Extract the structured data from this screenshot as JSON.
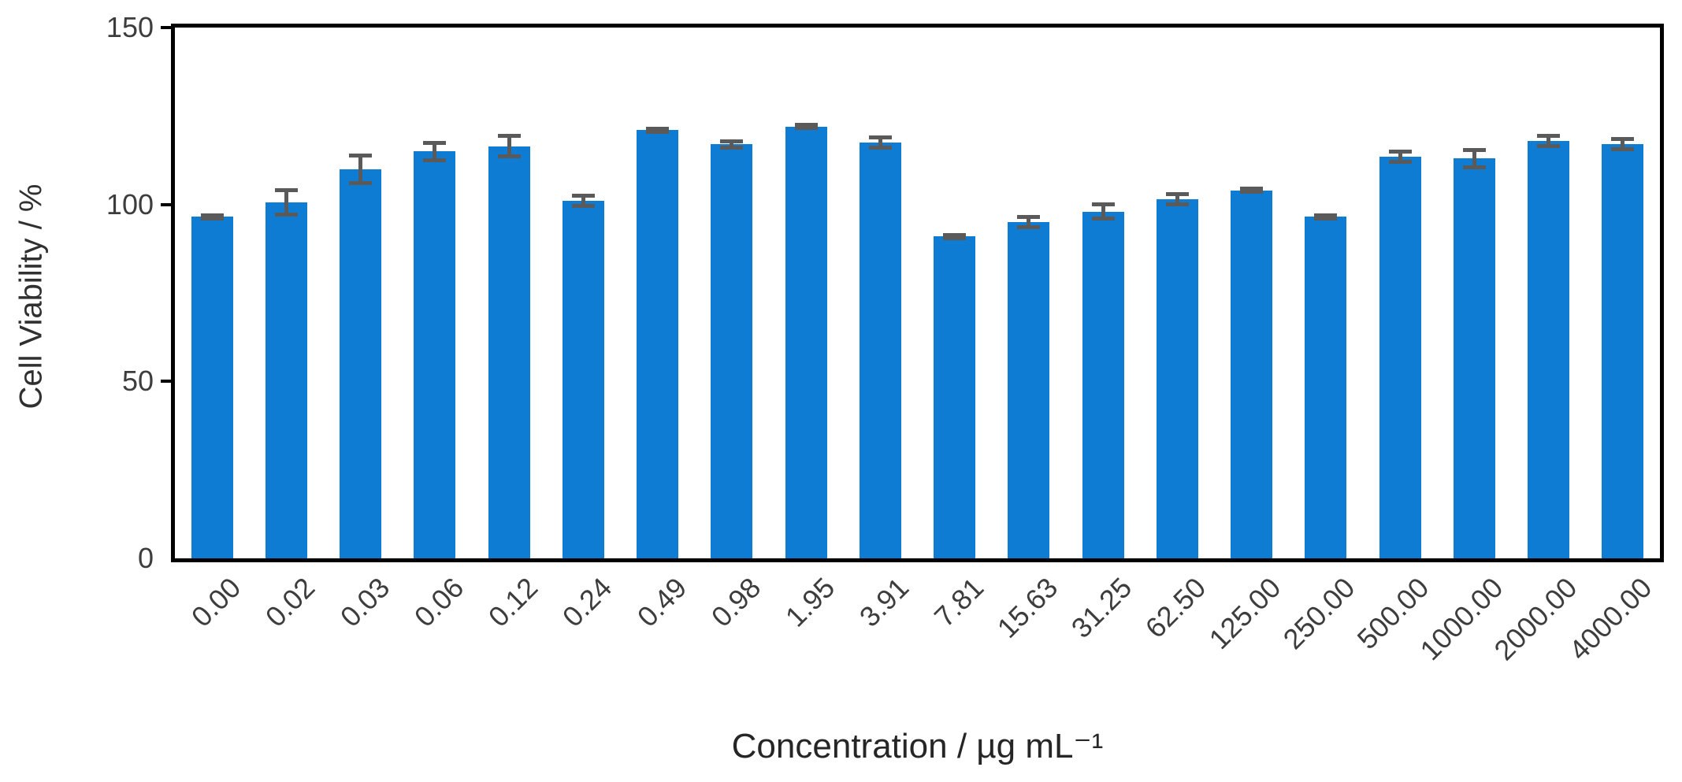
{
  "chart_data": {
    "type": "bar",
    "title": "",
    "categories": [
      "0.00",
      "0.02",
      "0.03",
      "0.06",
      "0.12",
      "0.24",
      "0.49",
      "0.98",
      "1.95",
      "3.91",
      "7.81",
      "15.63",
      "31.25",
      "62.50",
      "125.00",
      "250.00",
      "500.00",
      "1000.00",
      "2000.00",
      "4000.00"
    ],
    "values": [
      96.5,
      100.5,
      110,
      115,
      116.5,
      101,
      121,
      117,
      122,
      117.5,
      91,
      95,
      98,
      101.5,
      104,
      96.5,
      113.5,
      113,
      118,
      117
    ],
    "errors": [
      1,
      4,
      4.5,
      3,
      3.5,
      2,
      1,
      1.5,
      1,
      2,
      1,
      2,
      2.5,
      2,
      1,
      1,
      2,
      3,
      2,
      2
    ],
    "xlabel": "Concentration / µg mL⁻¹",
    "ylabel": "Cell Viability / %",
    "ylim": [
      0,
      150
    ],
    "yticks": [
      0,
      50,
      100,
      150
    ],
    "bar_color": "#0e7cd2",
    "error_color": "#5a5a5a",
    "axis_color": "#000000",
    "grid": false,
    "legend_position": "none"
  }
}
